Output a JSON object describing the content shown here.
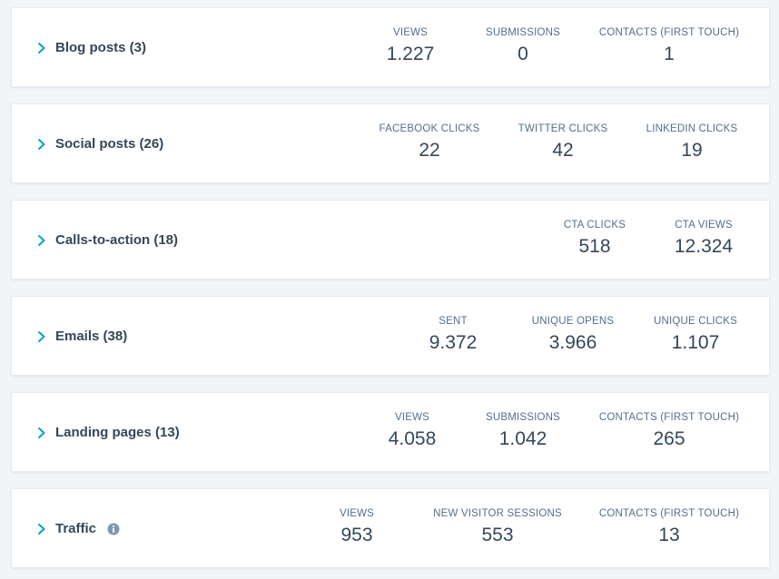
{
  "colors": {
    "accent": "#00a4bd",
    "text_primary": "#33475b",
    "text_label": "#516f90",
    "card_background": "#ffffff",
    "page_background": "#f2f4f7"
  },
  "rows": [
    {
      "title": "Blog posts (3)",
      "expand_icon": "chevron-right-icon",
      "metrics": [
        {
          "label": "VIEWS",
          "value": "1.227"
        },
        {
          "label": "SUBMISSIONS",
          "value": "0"
        },
        {
          "label": "CONTACTS (FIRST TOUCH)",
          "value": "1"
        }
      ]
    },
    {
      "title": "Social posts (26)",
      "expand_icon": "chevron-right-icon",
      "metrics": [
        {
          "label": "FACEBOOK CLICKS",
          "value": "22"
        },
        {
          "label": "TWITTER CLICKS",
          "value": "42"
        },
        {
          "label": "LINKEDIN CLICKS",
          "value": "19"
        }
      ]
    },
    {
      "title": "Calls-to-action (18)",
      "expand_icon": "chevron-right-icon",
      "metrics": [
        {
          "label": "CTA CLICKS",
          "value": "518"
        },
        {
          "label": "CTA VIEWS",
          "value": "12.324"
        }
      ]
    },
    {
      "title": "Emails (38)",
      "expand_icon": "chevron-right-icon",
      "metrics": [
        {
          "label": "SENT",
          "value": "9.372"
        },
        {
          "label": "UNIQUE OPENS",
          "value": "3.966"
        },
        {
          "label": "UNIQUE CLICKS",
          "value": "1.107"
        }
      ]
    },
    {
      "title": "Landing pages (13)",
      "expand_icon": "chevron-right-icon",
      "metrics": [
        {
          "label": "VIEWS",
          "value": "4.058"
        },
        {
          "label": "SUBMISSIONS",
          "value": "1.042"
        },
        {
          "label": "CONTACTS (FIRST TOUCH)",
          "value": "265"
        }
      ]
    },
    {
      "title": "Traffic",
      "expand_icon": "chevron-right-icon",
      "title_icon": "info-icon",
      "metrics": [
        {
          "label": "VIEWS",
          "value": "953"
        },
        {
          "label": "NEW VISITOR SESSIONS",
          "value": "553"
        },
        {
          "label": "CONTACTS (FIRST TOUCH)",
          "value": "13"
        }
      ]
    }
  ]
}
